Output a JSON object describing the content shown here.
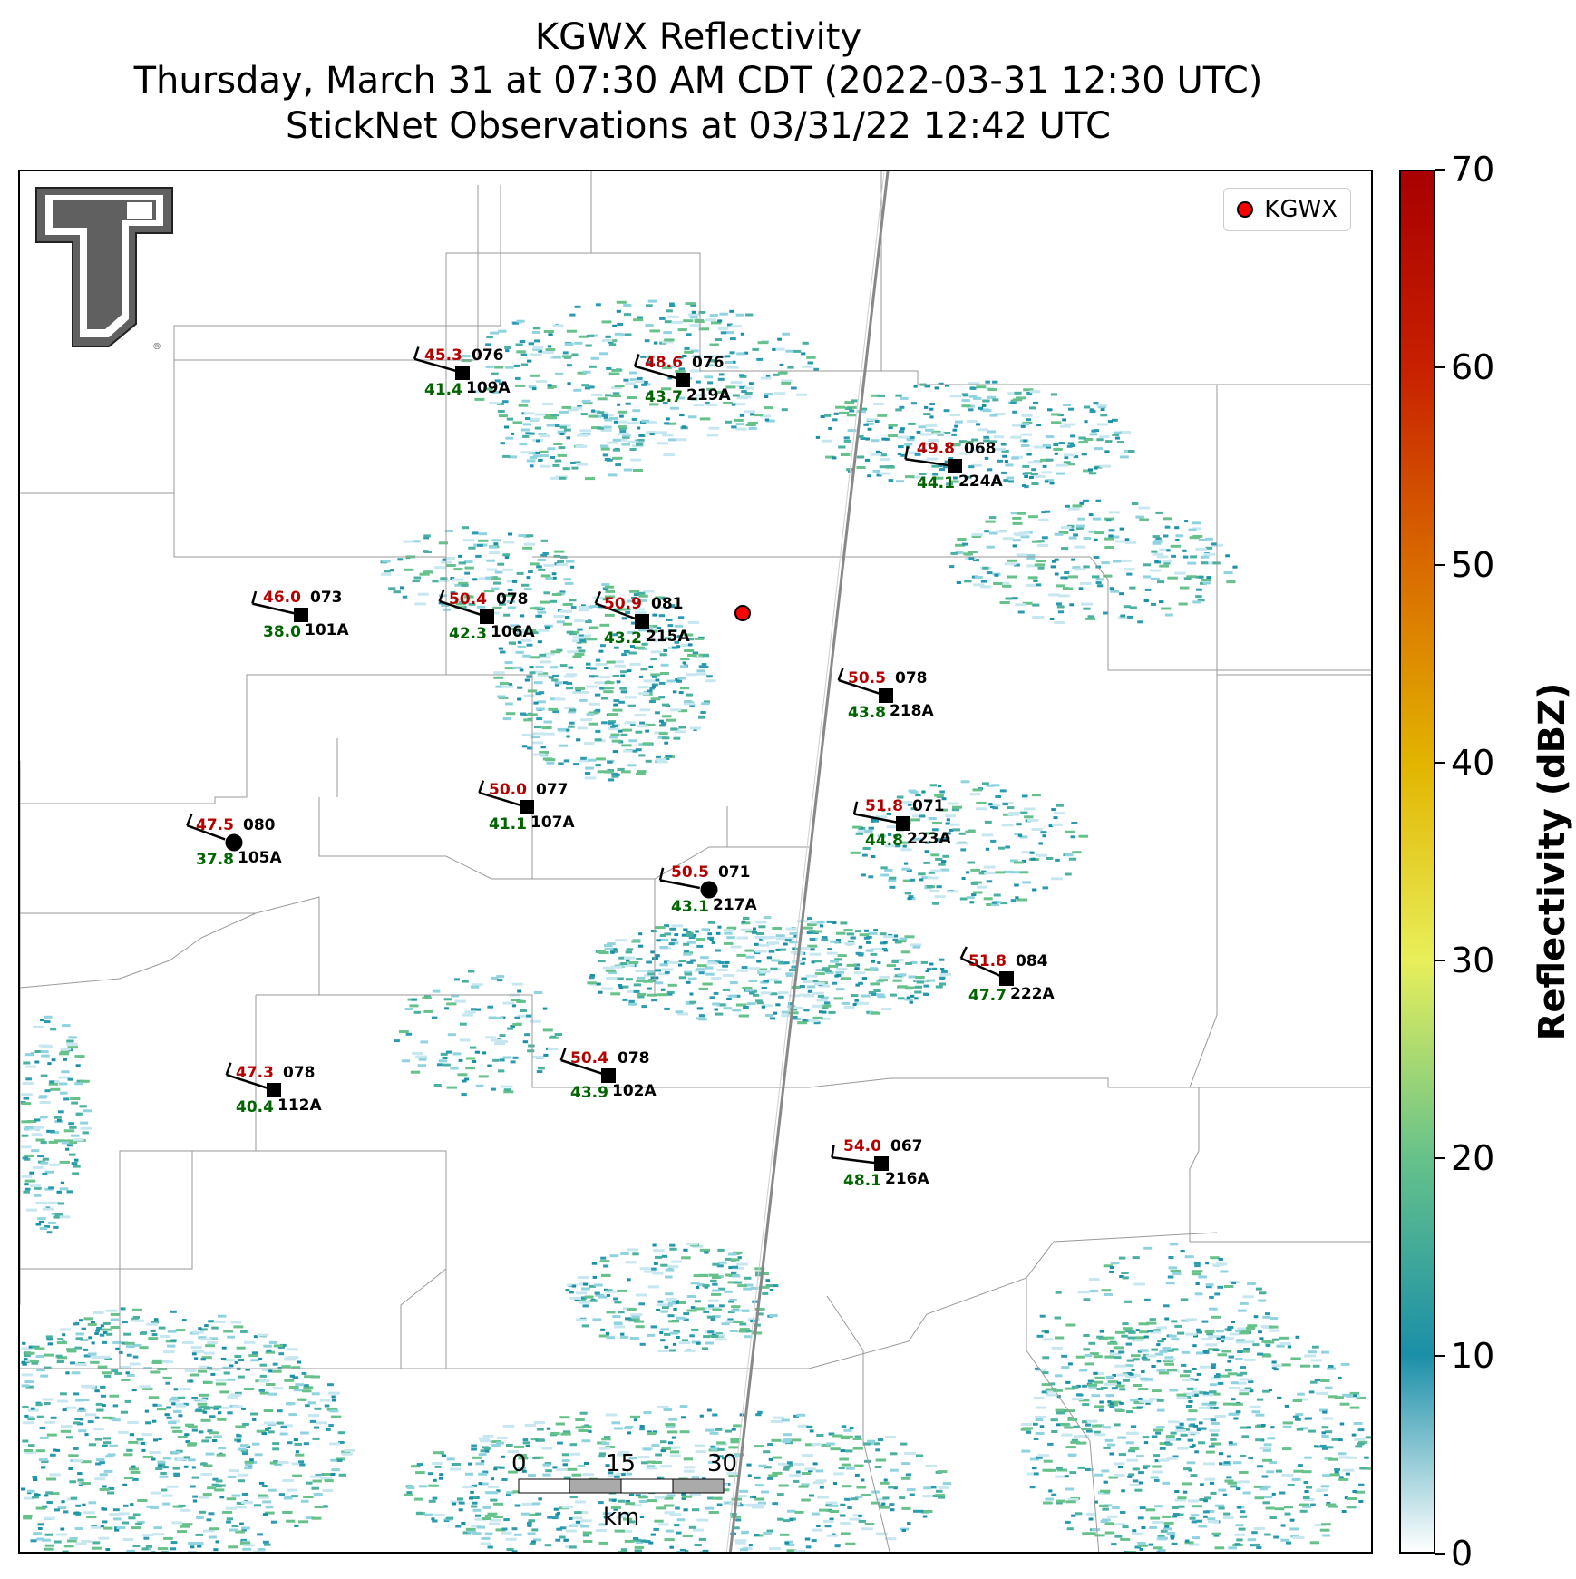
{
  "title": {
    "line1": "KGWX Reflectivity",
    "line2": "Thursday, March 31 at 07:30 AM CDT (2022-03-31 12:30 UTC)",
    "line3": "StickNet Observations at 03/31/22 12:42 UTC"
  },
  "legend": {
    "label": "KGWX",
    "marker_color": "#ff0000"
  },
  "colorbar": {
    "title": "Reflectivity (dBZ)",
    "ticks": [
      "0",
      "10",
      "20",
      "30",
      "40",
      "50",
      "60",
      "70"
    ],
    "range": [
      0,
      70
    ],
    "colors": [
      "#ffffff",
      "#1a8fa8",
      "#66c28a",
      "#e8ef5a",
      "#e2b400",
      "#d96a00",
      "#c82000",
      "#a80000"
    ]
  },
  "scalebar": {
    "ticks": [
      "0",
      "15",
      "30"
    ],
    "unit": "km"
  },
  "logo": {
    "icon": "texas-tech-double-t-logo"
  },
  "colors": {
    "temperature": "#b50000",
    "dewpoint": "#006400",
    "station_marker": "#000000",
    "radar_marker": "#ff0000"
  },
  "stations": [
    {
      "id": "109A",
      "temp": "45.3",
      "dew": "41.4",
      "dir": "076"
    },
    {
      "id": "219A",
      "temp": "48.6",
      "dew": "43.7",
      "dir": "076"
    },
    {
      "id": "224A",
      "temp": "49.8",
      "dew": "44.1",
      "dir": "068"
    },
    {
      "id": "101A",
      "temp": "46.0",
      "dew": "38.0",
      "dir": "073"
    },
    {
      "id": "106A",
      "temp": "50.4",
      "dew": "42.3",
      "dir": "078"
    },
    {
      "id": "215A",
      "temp": "50.9",
      "dew": "43.2",
      "dir": "081"
    },
    {
      "id": "218A",
      "temp": "50.5",
      "dew": "43.8",
      "dir": "078"
    },
    {
      "id": "107A",
      "temp": "50.0",
      "dew": "41.1",
      "dir": "077"
    },
    {
      "id": "223A",
      "temp": "51.8",
      "dew": "44.8",
      "dir": "071"
    },
    {
      "id": "105A",
      "temp": "47.5",
      "dew": "37.8",
      "dir": "080"
    },
    {
      "id": "217A",
      "temp": "50.5",
      "dew": "43.1",
      "dir": "071"
    },
    {
      "id": "222A",
      "temp": "51.8",
      "dew": "47.7",
      "dir": "084"
    },
    {
      "id": "112A",
      "temp": "47.3",
      "dew": "40.4",
      "dir": "078"
    },
    {
      "id": "102A",
      "temp": "50.4",
      "dew": "43.9",
      "dir": "078"
    },
    {
      "id": "216A",
      "temp": "54.0",
      "dew": "48.1",
      "dir": "067"
    }
  ]
}
